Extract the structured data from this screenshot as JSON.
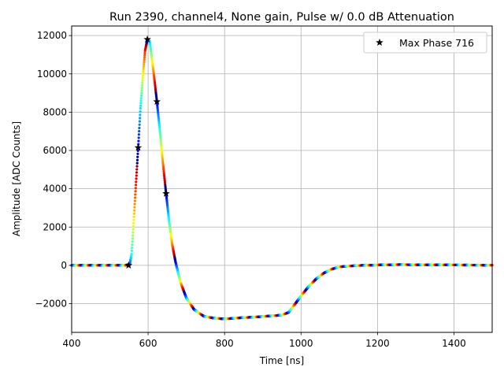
{
  "chart_data": {
    "type": "scatter",
    "title": "Run 2390, channel4, None gain, Pulse w/ 0.0 dB Attenuation",
    "xlabel": "Time [ns]",
    "ylabel": "Amplitude [ADC Counts]",
    "xlim": [
      400,
      1500
    ],
    "ylim": [
      -3500,
      12500
    ],
    "xticks": [
      400,
      600,
      800,
      1000,
      1200,
      1400
    ],
    "xtick_labels": [
      "400",
      "600",
      "800",
      "1000",
      "1200",
      "1400"
    ],
    "yticks": [
      -2000,
      0,
      2000,
      4000,
      6000,
      8000,
      10000,
      12000
    ],
    "ytick_labels": [
      "−2000",
      "0",
      "2000",
      "4000",
      "6000",
      "8000",
      "10000",
      "12000"
    ],
    "grid": true,
    "legend_position": "top-right",
    "colormap": "jet",
    "series": [
      {
        "name": "Max Phase 716",
        "marker": "star",
        "color": "#000000",
        "x": [
          549,
          574,
          598,
          623,
          647
        ],
        "y": [
          0,
          6150,
          11800,
          8550,
          3750
        ]
      }
    ],
    "waveform": {
      "description_points": "pulse shape sampled by colored dots",
      "x": [
        400,
        540,
        552,
        557,
        562,
        568,
        574,
        580,
        586,
        592,
        598,
        604,
        610,
        616,
        623,
        630,
        638,
        647,
        655,
        663,
        672,
        685,
        700,
        720,
        745,
        770,
        800,
        840,
        880,
        920,
        950,
        968,
        985,
        1000,
        1020,
        1040,
        1060,
        1080,
        1100,
        1130,
        1160,
        1200,
        1260,
        1300,
        1400,
        1500
      ],
      "y": [
        0,
        0,
        60,
        600,
        2200,
        4200,
        6150,
        8200,
        9800,
        11200,
        11800,
        11700,
        10800,
        9800,
        8550,
        7200,
        5500,
        3750,
        2300,
        1100,
        150,
        -900,
        -1700,
        -2300,
        -2650,
        -2750,
        -2800,
        -2740,
        -2700,
        -2640,
        -2600,
        -2450,
        -2000,
        -1600,
        -1100,
        -700,
        -400,
        -200,
        -80,
        -30,
        0,
        20,
        40,
        30,
        20,
        10
      ]
    }
  }
}
